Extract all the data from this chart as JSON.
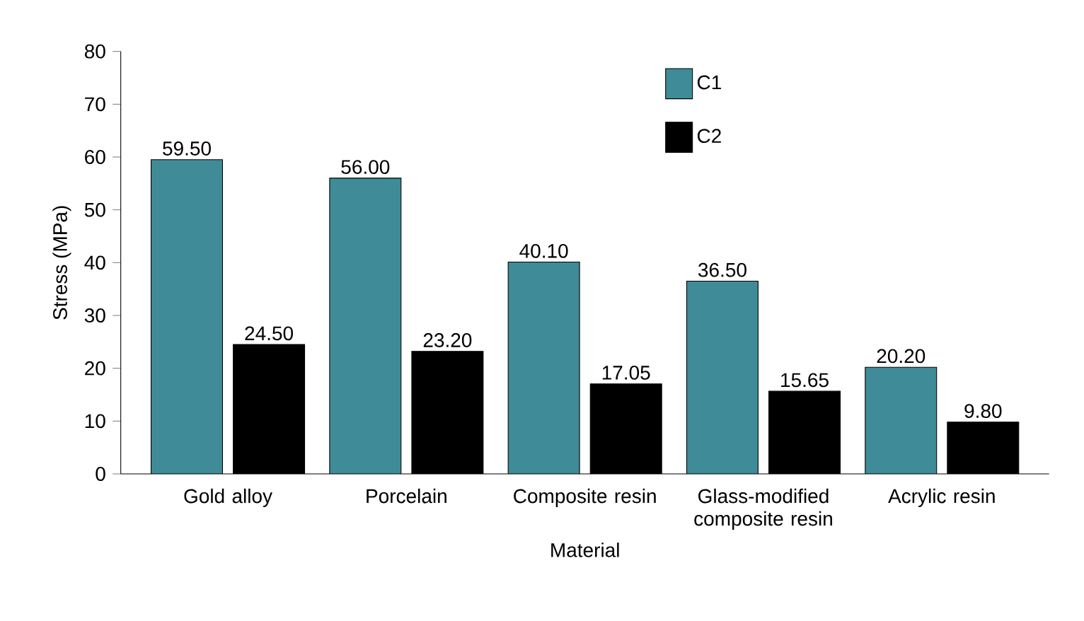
{
  "chart_data": {
    "type": "bar",
    "xlabel": "Material",
    "ylabel": "Stress (MPa)",
    "categories": [
      "Gold alloy",
      "Porcelain",
      "Composite resin",
      "Glass-modified composite resin",
      "Acrylic resin"
    ],
    "series": [
      {
        "name": "C1",
        "color": "#3f8b97",
        "values": [
          59.5,
          56.0,
          40.1,
          36.5,
          20.2
        ],
        "value_labels": [
          "59.50",
          "56.00",
          "40.10",
          "36.50",
          "20.20"
        ]
      },
      {
        "name": "C2",
        "color": "#000000",
        "values": [
          24.5,
          23.2,
          17.05,
          15.65,
          9.8
        ],
        "value_labels": [
          "24.50",
          "23.20",
          "17.05",
          "15.65",
          "9.80"
        ]
      }
    ],
    "ylim": [
      0,
      80
    ],
    "yticks": [
      0,
      10,
      20,
      30,
      40,
      50,
      60,
      70,
      80
    ],
    "grid": false,
    "legend": "top"
  }
}
